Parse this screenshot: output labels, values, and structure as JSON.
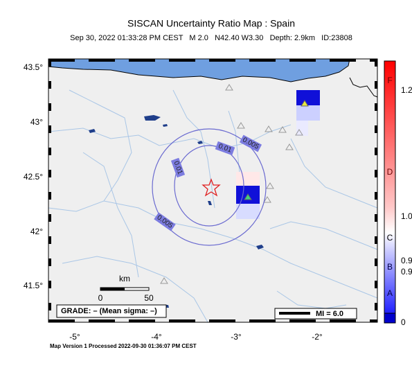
{
  "header": {
    "title": "SISCAN Uncertainty Ratio Map : Spain",
    "subtitle": "Sep 30, 2022 01:33:28 PM CEST   M 2.0   N42.40 W3.30   Depth: 2.9km   ID:23808"
  },
  "map": {
    "x_ticks": [
      "-5°",
      "-4°",
      "-3°",
      "-2°"
    ],
    "y_ticks": [
      "43.5°",
      "43°",
      "42.5°",
      "42°",
      "41.5°"
    ],
    "contour_labels": [
      "0.01",
      "0.005",
      "0.01",
      "0.005"
    ],
    "scale_bar": {
      "unit": "km",
      "ticks": [
        "0",
        "50"
      ]
    },
    "grade_legend": "GRADE: – (Mean sigma: –)",
    "mi_legend": "MI = 6.0"
  },
  "colorbar": {
    "letters": [
      "F",
      "D",
      "C",
      "B",
      "A"
    ],
    "labels": [
      "1.2",
      "1.0",
      "0.9",
      "0.9",
      "0"
    ]
  },
  "footer": "Map Version 1 Processed 2022-09-30 01:36:07 PM CEST"
}
